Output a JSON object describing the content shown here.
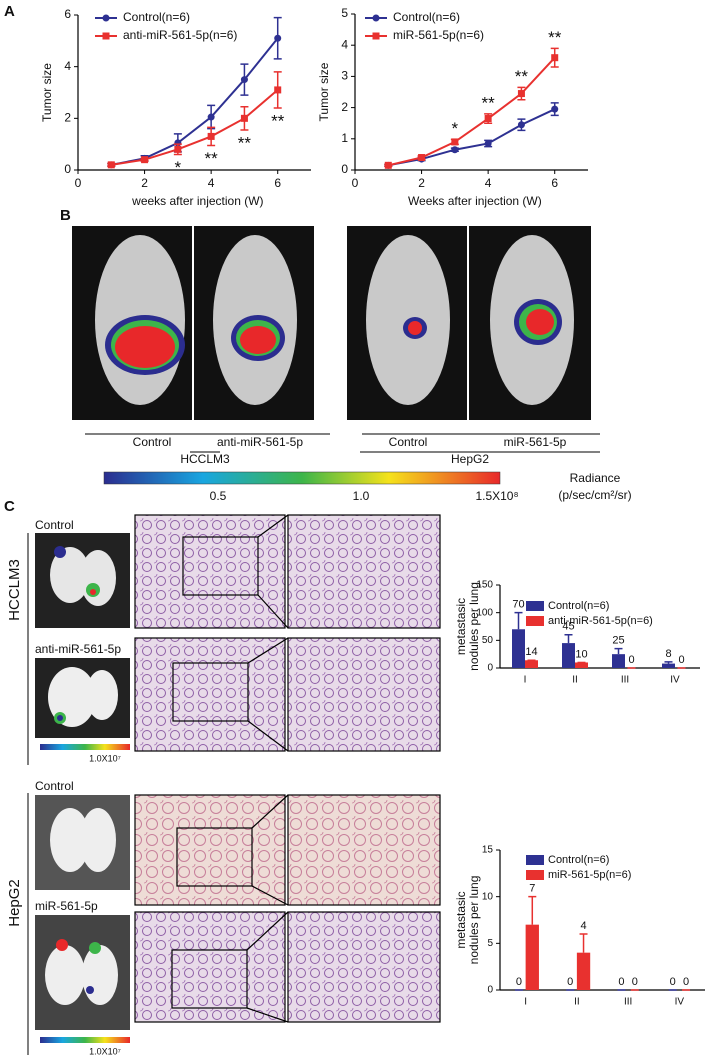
{
  "panels": {
    "a": "A",
    "b": "B",
    "c": "C"
  },
  "panel_b": {
    "groups": [
      {
        "name": "HCCLM3",
        "samples": [
          "Control",
          "anti-miR-561-5p"
        ]
      },
      {
        "name": "HepG2",
        "samples": [
          "Control",
          "miR-561-5p"
        ]
      }
    ],
    "colorbar": {
      "title": "Radiance",
      "unit": "(p/sec/cm²/sr)",
      "ticks": [
        "0.5",
        "1.0",
        "1.5X10⁸"
      ]
    }
  },
  "panel_c": {
    "groups": [
      {
        "name": "HCCLM3",
        "samples": [
          "Control",
          "anti-miR-561-5p"
        ],
        "scale": "1.0X10⁷"
      },
      {
        "name": "HepG2",
        "samples": [
          "Control",
          "miR-561-5p"
        ],
        "scale": "1.0X10⁷"
      }
    ]
  },
  "chart_data": [
    {
      "type": "line",
      "xlabel": "weeks after injection (W)",
      "ylabel": "Tumor size",
      "x": [
        1,
        2,
        3,
        4,
        5,
        6
      ],
      "xlim": [
        0,
        7
      ],
      "xticks": [
        0,
        2,
        4,
        6
      ],
      "ylim": [
        0,
        6
      ],
      "yticks": [
        0,
        2,
        4,
        6
      ],
      "series": [
        {
          "name": "Control(n=6)",
          "color": "#2e3192",
          "values": [
            0.2,
            0.45,
            1.05,
            2.05,
            3.5,
            5.1
          ],
          "errors": [
            0.05,
            0.1,
            0.35,
            0.45,
            0.6,
            0.8
          ]
        },
        {
          "name": "anti-miR-561-5p(n=6)",
          "color": "#e8312f",
          "values": [
            0.2,
            0.4,
            0.8,
            1.3,
            2.0,
            3.1
          ],
          "errors": [
            0.05,
            0.05,
            0.2,
            0.35,
            0.45,
            0.7
          ]
        }
      ],
      "annotations": [
        {
          "x": 3,
          "label": "*"
        },
        {
          "x": 4,
          "label": "**"
        },
        {
          "x": 5,
          "label": "**"
        },
        {
          "x": 6,
          "label": "**"
        }
      ]
    },
    {
      "type": "line",
      "xlabel": "Weeks after injection (W)",
      "ylabel": "Tumor size",
      "x": [
        1,
        2,
        3,
        4,
        5,
        6
      ],
      "xlim": [
        0,
        7
      ],
      "xticks": [
        0,
        2,
        4,
        6
      ],
      "ylim": [
        0,
        5
      ],
      "yticks": [
        0,
        1,
        2,
        3,
        4,
        5
      ],
      "series": [
        {
          "name": "Control(n=6)",
          "color": "#2e3192",
          "values": [
            0.15,
            0.35,
            0.65,
            0.85,
            1.45,
            1.95
          ],
          "errors": [
            0.03,
            0.05,
            0.05,
            0.1,
            0.18,
            0.2
          ]
        },
        {
          "name": "miR-561-5p(n=6)",
          "color": "#e8312f",
          "values": [
            0.15,
            0.4,
            0.9,
            1.65,
            2.45,
            3.6
          ],
          "errors": [
            0.03,
            0.05,
            0.08,
            0.15,
            0.2,
            0.3
          ]
        }
      ],
      "annotations": [
        {
          "x": 3,
          "label": "*"
        },
        {
          "x": 4,
          "label": "**"
        },
        {
          "x": 5,
          "label": "**"
        },
        {
          "x": 6,
          "label": "**"
        }
      ]
    },
    {
      "type": "bar",
      "ylabel": [
        "metastasic",
        "nodules per lung"
      ],
      "categories": [
        "I",
        "II",
        "III",
        "IV"
      ],
      "ylim": [
        0,
        150
      ],
      "yticks": [
        0,
        50,
        100,
        150
      ],
      "series": [
        {
          "name": "Control(n=6)",
          "color": "#2e3192",
          "values": [
            70,
            45,
            25,
            8
          ],
          "errors": [
            30,
            15,
            10,
            3
          ]
        },
        {
          "name": "anti-miR-561-5p(n=6)",
          "color": "#e8312f",
          "values": [
            14,
            10,
            0,
            0
          ],
          "errors": [
            0,
            0,
            0,
            0
          ]
        }
      ]
    },
    {
      "type": "bar",
      "ylabel": [
        "metastasic",
        "nodules per lung"
      ],
      "categories": [
        "I",
        "II",
        "III",
        "IV"
      ],
      "ylim": [
        0,
        15
      ],
      "yticks": [
        0,
        5,
        10,
        15
      ],
      "series": [
        {
          "name": "Control(n=6)",
          "color": "#2e3192",
          "values": [
            0,
            0,
            0,
            0
          ],
          "errors": [
            0,
            0,
            0,
            0
          ]
        },
        {
          "name": "miR-561-5p(n=6)",
          "color": "#e8312f",
          "values": [
            7,
            4,
            0,
            0
          ],
          "errors": [
            3,
            2,
            0,
            0
          ]
        }
      ]
    }
  ]
}
